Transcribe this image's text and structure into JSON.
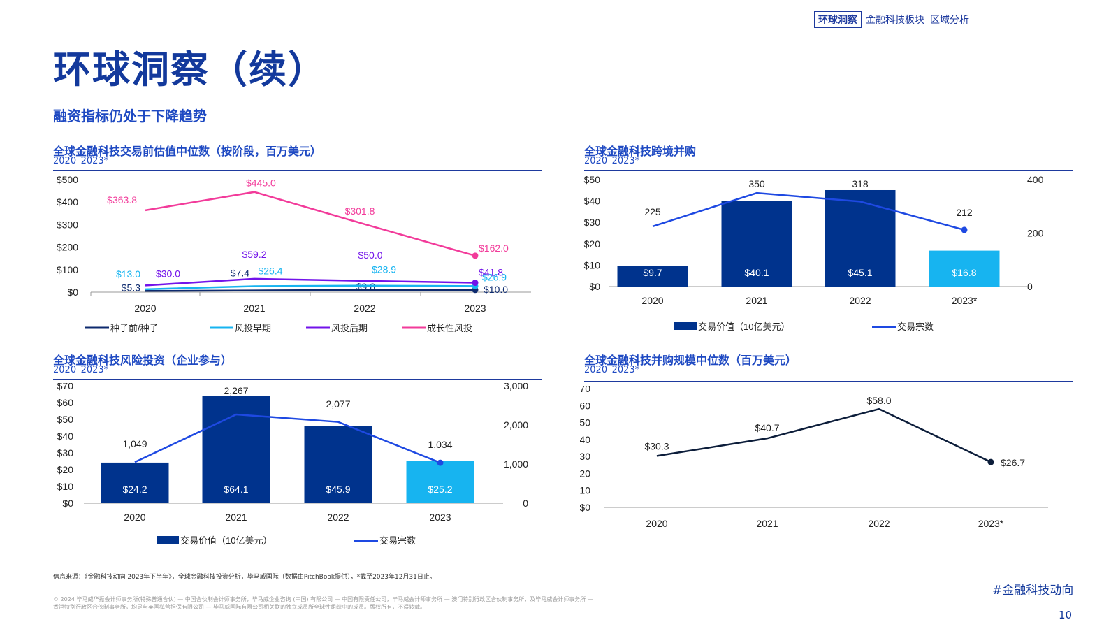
{
  "header": {
    "nav_box": "环球洞察",
    "nav_item1": "金融科技板块",
    "nav_item2": "区域分析"
  },
  "page_title": "环球洞察（续）",
  "subtitle": "融资指标仍处于下降趋势",
  "colors": {
    "dark_navy": "#0d2a6e",
    "navy": "#00338d",
    "cyan": "#17b4f0",
    "purple": "#7213ea",
    "pink": "#f23b9a",
    "blue_line": "#1e49e2",
    "black_line": "#0c1d3a"
  },
  "chart_data": [
    {
      "type": "line",
      "title": "全球金融科技交易前估值中位数（按阶段，百万美元）",
      "period": "2020–2023*",
      "x": [
        "2020",
        "2021",
        "2022",
        "2023"
      ],
      "y_ticks": [
        "$0",
        "$100",
        "$200",
        "$300",
        "$400",
        "$500"
      ],
      "ylim": [
        0,
        500
      ],
      "series": [
        {
          "name": "种子前/种子",
          "values": [
            5.3,
            7.4,
            9.8,
            10.0
          ],
          "labels": [
            "$5.3",
            "$7.4",
            "$9.8",
            "$10.0"
          ],
          "color": "#0d2a6e"
        },
        {
          "name": "风投早期",
          "values": [
            13.0,
            26.4,
            28.9,
            26.9
          ],
          "labels": [
            "$13.0",
            "$26.4",
            "$28.9",
            "$26.9"
          ],
          "color": "#17b4f0"
        },
        {
          "name": "风投后期",
          "values": [
            30.0,
            59.2,
            50.0,
            41.8
          ],
          "labels": [
            "$30.0",
            "$59.2",
            "$50.0",
            "$41.8"
          ],
          "color": "#7213ea"
        },
        {
          "name": "成长性风投",
          "values": [
            363.8,
            445.0,
            301.8,
            162.0
          ],
          "labels": [
            "$363.8",
            "$445.0",
            "$301.8",
            "$162.0"
          ],
          "color": "#f23b9a"
        }
      ],
      "legend": "bottom"
    },
    {
      "type": "bar",
      "title": "全球金融科技跨境并购",
      "period": "2020–2023*",
      "categories": [
        "2020",
        "2021",
        "2022",
        "2023*"
      ],
      "y_ticks": [
        "$0",
        "$10",
        "$20",
        "$30",
        "$40",
        "$50"
      ],
      "y2_ticks": [
        "0",
        "200",
        "400"
      ],
      "ylim": [
        0,
        50
      ],
      "y2lim": [
        0,
        400
      ],
      "series": [
        {
          "name": "交易价值（10亿美元）",
          "kind": "bar",
          "values": [
            9.7,
            40.1,
            45.1,
            16.8
          ],
          "labels": [
            "$9.7",
            "$40.1",
            "$45.1",
            "$16.8"
          ]
        },
        {
          "name": "交易宗数",
          "kind": "line",
          "axis": "right",
          "values": [
            225,
            350,
            318,
            212
          ],
          "labels": [
            "225",
            "350",
            "318",
            "212"
          ]
        }
      ],
      "legend": "bottom"
    },
    {
      "type": "bar",
      "title": "全球金融科技风险投资（企业参与）",
      "period": "2020–2023*",
      "categories": [
        "2020",
        "2021",
        "2022",
        "2023"
      ],
      "y_ticks": [
        "$0",
        "$10",
        "$20",
        "$30",
        "$40",
        "$50",
        "$60",
        "$70"
      ],
      "y2_ticks": [
        "0",
        "1,000",
        "2,000",
        "3,000"
      ],
      "ylim": [
        0,
        70
      ],
      "y2lim": [
        0,
        3000
      ],
      "series": [
        {
          "name": "交易价值（10亿美元）",
          "kind": "bar",
          "values": [
            24.2,
            64.1,
            45.9,
            25.2
          ],
          "labels": [
            "$24.2",
            "$64.1",
            "$45.9",
            "$25.2"
          ]
        },
        {
          "name": "交易宗数",
          "kind": "line",
          "axis": "right",
          "values": [
            1049,
            2267,
            2077,
            1034
          ],
          "labels": [
            "1,049",
            "2,267",
            "2,077",
            "1,034"
          ]
        }
      ],
      "legend": "bottom"
    },
    {
      "type": "line",
      "title": "全球金融科技并购规模中位数（百万美元）",
      "period": "2020–2023*",
      "x": [
        "2020",
        "2021",
        "2022",
        "2023*"
      ],
      "y_ticks": [
        "$0",
        "$10",
        "$20",
        "$30",
        "$40",
        "$50",
        "$60",
        "$70"
      ],
      "ylim": [
        0,
        70
      ],
      "series": [
        {
          "name": "",
          "values": [
            30.3,
            40.7,
            58.0,
            26.7
          ],
          "labels": [
            "$30.3",
            "$40.7",
            "$58.0",
            "$26.7"
          ]
        }
      ]
    }
  ],
  "footer": {
    "source": "信息来源：《金融科技动向 2023年下半年》，全球金融科技投资分析，毕马威国际（数据由PitchBook提供），*截至2023年12月31日止。",
    "copyright_line1": "© 2024 毕马威华振会计师事务所(特殊普通合伙) — 中国合伙制会计师事务所，毕马威企业咨询 (中国) 有限公司 — 中国有限责任公司，毕马威会计师事务所 — 澳门特别行政区合伙制事务所，及毕马威会计师事务所 —",
    "copyright_line2": "香港特别行政区合伙制事务所，均是与英国私营担保有限公司 — 毕马威国际有限公司相关联的独立成员所全球性组织中的成员。版权所有，不得转载。",
    "hashtag": "#金融科技动向",
    "page_number": "10"
  }
}
